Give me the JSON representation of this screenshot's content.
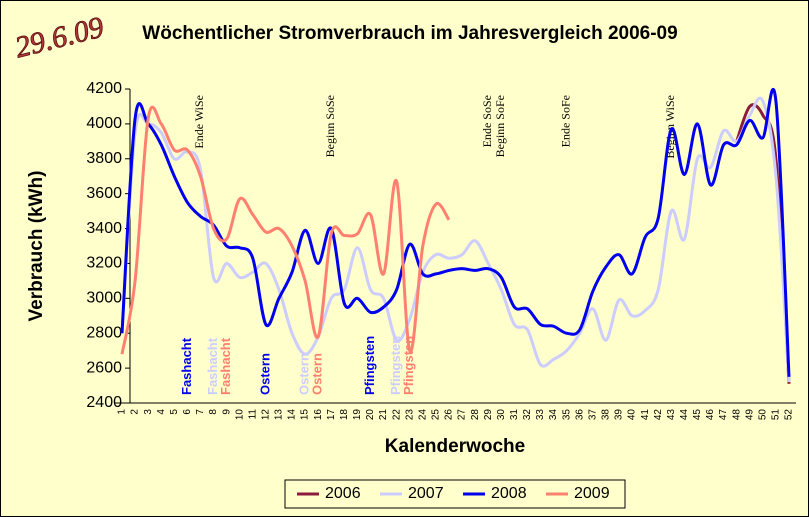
{
  "stamp": "29.6.09",
  "chart_data": {
    "type": "line",
    "title": "Wöchentlicher Stromverbrauch im Jahresvergleich 2006-09",
    "x_label": "Kalenderwoche",
    "y_label": "Verbrauch (kWh)",
    "categories": [
      "1",
      "2",
      "3",
      "4",
      "5",
      "6",
      "7",
      "8",
      "9",
      "10",
      "11",
      "12",
      "13",
      "14",
      "15",
      "16",
      "17",
      "18",
      "19",
      "20",
      "21",
      "22",
      "23",
      "24",
      "25",
      "26",
      "27",
      "28",
      "29",
      "30",
      "31",
      "32",
      "33",
      "34",
      "35",
      "36",
      "37",
      "38",
      "39",
      "40",
      "41",
      "42",
      "43",
      "44",
      "45",
      "46",
      "47",
      "48",
      "49",
      "50",
      "51",
      "52"
    ],
    "ylim": [
      2400,
      4200
    ],
    "yticks": [
      2400,
      2600,
      2800,
      3000,
      3200,
      3400,
      3600,
      3800,
      4000,
      4200
    ],
    "grid": false,
    "legend": "bottom",
    "series": [
      {
        "name": "2006",
        "color": "#8b1c3c",
        "values": [
          null,
          null,
          null,
          null,
          null,
          null,
          null,
          null,
          null,
          null,
          null,
          null,
          null,
          null,
          null,
          null,
          null,
          null,
          null,
          null,
          null,
          null,
          null,
          null,
          null,
          null,
          null,
          null,
          null,
          null,
          null,
          null,
          null,
          null,
          null,
          null,
          null,
          null,
          null,
          null,
          null,
          null,
          null,
          null,
          null,
          null,
          null,
          3900,
          4100,
          4050,
          3800,
          2510
        ]
      },
      {
        "name": "2007",
        "color": "#ccccff",
        "values": [
          2800,
          3950,
          4000,
          3950,
          3800,
          3840,
          3740,
          3120,
          3200,
          3120,
          3150,
          3200,
          3050,
          2800,
          2680,
          2780,
          3000,
          3050,
          3290,
          3050,
          3000,
          2760,
          2880,
          3150,
          3250,
          3230,
          3250,
          3330,
          3200,
          3050,
          2850,
          2820,
          2620,
          2650,
          2700,
          2800,
          2940,
          2760,
          2990,
          2900,
          2930,
          3050,
          3500,
          3340,
          3800,
          3750,
          3960,
          3900,
          4050,
          4130,
          3700,
          2520
        ]
      },
      {
        "name": "2008",
        "color": "#0000ee",
        "values": [
          2800,
          4030,
          4000,
          3880,
          3700,
          3550,
          3470,
          3420,
          3300,
          3290,
          3230,
          2850,
          3000,
          3150,
          3390,
          3200,
          3400,
          2970,
          3000,
          2920,
          2950,
          3050,
          3310,
          3140,
          3140,
          3160,
          3170,
          3160,
          3170,
          3120,
          2950,
          2940,
          2850,
          2840,
          2800,
          2820,
          3040,
          3180,
          3250,
          3140,
          3350,
          3460,
          3970,
          3710,
          4000,
          3650,
          3880,
          3880,
          4020,
          3920,
          4130,
          2550
        ]
      },
      {
        "name": "2009",
        "color": "#ff8070",
        "values": [
          2680,
          3100,
          4030,
          4000,
          3850,
          3850,
          3700,
          3400,
          3340,
          3570,
          3480,
          3380,
          3400,
          3300,
          3100,
          2780,
          3370,
          3360,
          3370,
          3480,
          3140,
          3670,
          2700,
          3300,
          3540,
          3450,
          null,
          null,
          null,
          null,
          null,
          null,
          null,
          null,
          null,
          null,
          null,
          null,
          null,
          null,
          null,
          null,
          null,
          null,
          null,
          null,
          null,
          null,
          null,
          null,
          null,
          null
        ]
      }
    ],
    "annotations": [
      {
        "text": "Ende WiSe",
        "x": 7,
        "color": "#000000"
      },
      {
        "text": "Beginn SoSe",
        "x": 17,
        "color": "#000000"
      },
      {
        "text": "Ende SoSe",
        "x": 29,
        "color": "#000000"
      },
      {
        "text": "Beginn SoFe",
        "x": 30,
        "color": "#000000"
      },
      {
        "text": "Ende SoFe",
        "x": 35,
        "color": "#000000"
      },
      {
        "text": "Beginn WiSe",
        "x": 43,
        "color": "#000000"
      },
      {
        "text": "Fashacht",
        "x": 6,
        "color": "#0000ee"
      },
      {
        "text": "Fashacht",
        "x": 8,
        "color": "#ccccff"
      },
      {
        "text": "Fashacht",
        "x": 9,
        "color": "#ff8070"
      },
      {
        "text": "Ostern",
        "x": 12,
        "color": "#0000ee"
      },
      {
        "text": "Ostern",
        "x": 15,
        "color": "#ccccff"
      },
      {
        "text": "Ostern",
        "x": 16,
        "color": "#ff8070"
      },
      {
        "text": "Pfingsten",
        "x": 20,
        "color": "#0000ee"
      },
      {
        "text": "Pfingsten",
        "x": 22,
        "color": "#ccccff"
      },
      {
        "text": "Pfingsten",
        "x": 23,
        "color": "#ff8070"
      }
    ]
  }
}
